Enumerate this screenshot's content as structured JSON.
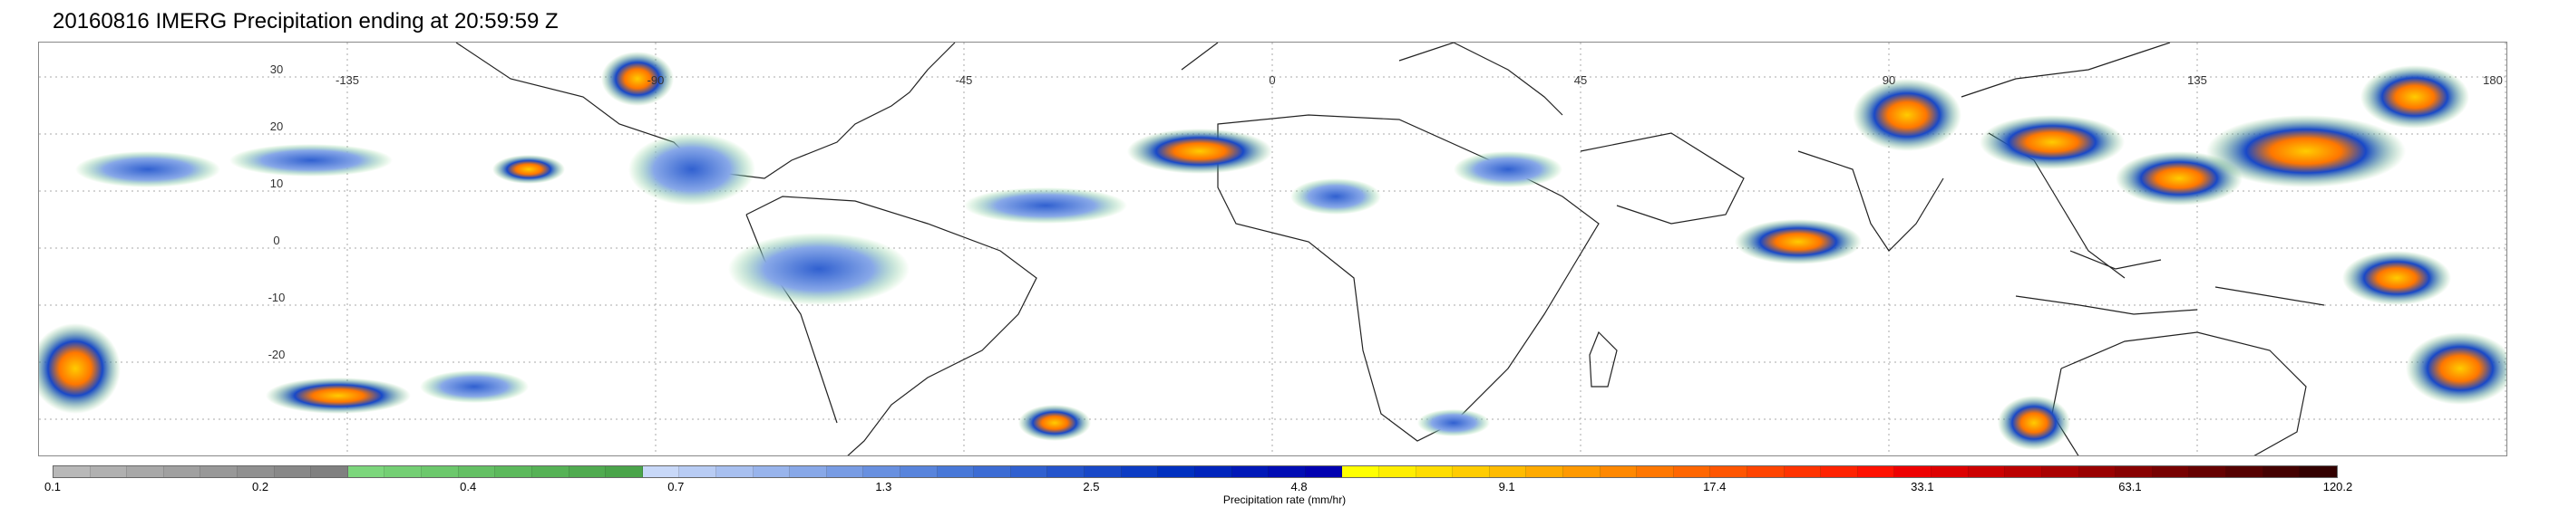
{
  "title": "20160816 IMERG Precipitation ending at 20:59:59 Z",
  "map": {
    "lon_labels": [
      "-135",
      "-90",
      "-45",
      "0",
      "45",
      "90",
      "135",
      "180"
    ],
    "lat_labels": [
      "30",
      "20",
      "10",
      "0",
      "-10",
      "-20"
    ]
  },
  "legend": {
    "label": "Precipitation rate (mm/hr)",
    "ticks": [
      "0.1",
      "0.2",
      "0.4",
      "0.7",
      "1.3",
      "2.5",
      "4.8",
      "9.1",
      "17.4",
      "33.1",
      "63.1",
      "120.2"
    ],
    "colors": [
      "#b8b8b8",
      "#b0b0b0",
      "#a8a8a8",
      "#a0a0a0",
      "#989898",
      "#909090",
      "#888888",
      "#808080",
      "#7cd67c",
      "#74cf74",
      "#6cc86c",
      "#64c064",
      "#5cb95c",
      "#56b256",
      "#50ab50",
      "#4aa44a",
      "#c8d8f8",
      "#b8ccf4",
      "#a8c0f0",
      "#98b4ec",
      "#88a8e8",
      "#789ce4",
      "#6890e0",
      "#5884dc",
      "#4878d8",
      "#3c6cd4",
      "#3060d0",
      "#2454cc",
      "#1848c8",
      "#0c3cc4",
      "#0030c0",
      "#0024bc",
      "#0018b8",
      "#000cb4",
      "#0000b0",
      "#ffff00",
      "#ffee00",
      "#ffdd00",
      "#ffcc00",
      "#ffbb00",
      "#ffaa00",
      "#ff9900",
      "#ff8800",
      "#ff7700",
      "#ff6600",
      "#ff5500",
      "#ff4400",
      "#ff3300",
      "#ff2200",
      "#ff1100",
      "#ee0000",
      "#dd0000",
      "#cc0000",
      "#bb0000",
      "#aa0000",
      "#990000",
      "#880000",
      "#770000",
      "#660000",
      "#550000",
      "#440000",
      "#330000"
    ]
  }
}
